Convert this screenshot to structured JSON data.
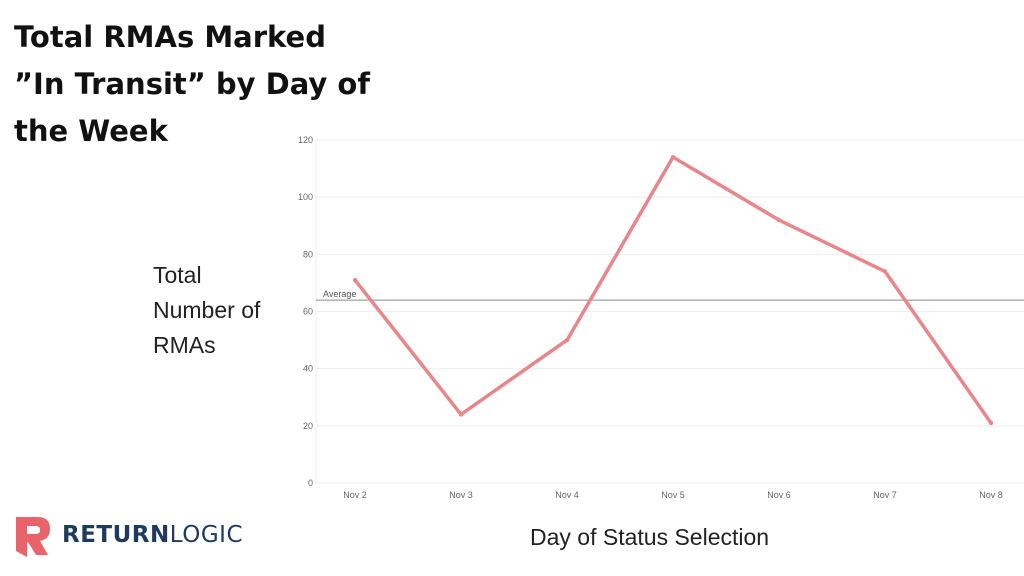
{
  "chart_data": {
    "type": "line",
    "title": "Total RMAs Marked ”In Transit” by Day of the Week",
    "xlabel": "Day of Status Selection",
    "ylabel": "Total Number of RMAs",
    "categories": [
      "Nov 2",
      "Nov 3",
      "Nov 4",
      "Nov 5",
      "Nov 6",
      "Nov 7",
      "Nov 8"
    ],
    "values": [
      71,
      24,
      50,
      114,
      92,
      74,
      21
    ],
    "ylim": [
      0,
      120
    ],
    "yticks": [
      0,
      20,
      40,
      60,
      80,
      100,
      120
    ],
    "reference_line": {
      "label": "Average",
      "value": 64
    },
    "grid": true,
    "line_color": "#e8868a"
  },
  "brand": {
    "logo_bold": "RETURN",
    "logo_light": "LOGIC",
    "colors": {
      "mark": "#e8646a",
      "text": "#1f3a5f"
    }
  }
}
